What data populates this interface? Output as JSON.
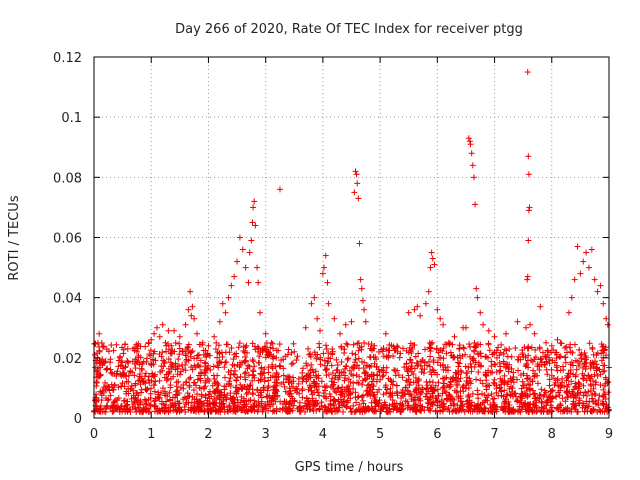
{
  "chart_data": {
    "type": "scatter",
    "title": "Day 266 of 2020, Rate Of TEC Index for receiver ptgg",
    "xlabel": "GPS time / hours",
    "ylabel": "ROTI / TECUs",
    "xlim": [
      0,
      9
    ],
    "ylim": [
      0,
      0.12
    ],
    "x_ticks": [
      "0",
      "1",
      "2",
      "3",
      "4",
      "5",
      "6",
      "7",
      "8",
      "9"
    ],
    "y_ticks": [
      "0",
      "0.02",
      "0.04",
      "0.06",
      "0.08",
      "0.1",
      "0.12"
    ],
    "grid": true,
    "legend": "none",
    "marker": "plus",
    "color": "#ee0000",
    "baseline_range": [
      0.002,
      0.025
    ],
    "series": [
      {
        "points": [
          [
            0.02,
            0.006
          ],
          [
            0.04,
            0.012
          ],
          [
            0.05,
            0.019
          ],
          [
            0.07,
            0.025
          ],
          [
            0.09,
            0.028
          ],
          [
            0.1,
            0.022
          ],
          [
            0.12,
            0.004
          ],
          [
            0.15,
            0.009
          ],
          [
            0.3,
            0.015
          ],
          [
            0.45,
            0.02
          ],
          [
            0.6,
            0.012
          ],
          [
            0.75,
            0.022
          ],
          [
            0.85,
            0.018
          ],
          [
            0.95,
            0.025
          ],
          [
            1.0,
            0.026
          ],
          [
            1.05,
            0.028
          ],
          [
            1.1,
            0.03
          ],
          [
            1.15,
            0.027
          ],
          [
            1.2,
            0.031
          ],
          [
            1.25,
            0.025
          ],
          [
            1.3,
            0.029
          ],
          [
            1.35,
            0.024
          ],
          [
            1.4,
            0.029
          ],
          [
            1.5,
            0.027
          ],
          [
            1.55,
            0.022
          ],
          [
            1.6,
            0.031
          ],
          [
            1.65,
            0.036
          ],
          [
            1.68,
            0.042
          ],
          [
            1.7,
            0.034
          ],
          [
            1.72,
            0.037
          ],
          [
            1.75,
            0.033
          ],
          [
            1.8,
            0.028
          ],
          [
            1.9,
            0.025
          ],
          [
            2.0,
            0.024
          ],
          [
            2.1,
            0.027
          ],
          [
            2.2,
            0.032
          ],
          [
            2.25,
            0.038
          ],
          [
            2.3,
            0.035
          ],
          [
            2.35,
            0.04
          ],
          [
            2.4,
            0.044
          ],
          [
            2.45,
            0.047
          ],
          [
            2.5,
            0.052
          ],
          [
            2.55,
            0.06
          ],
          [
            2.6,
            0.056
          ],
          [
            2.65,
            0.05
          ],
          [
            2.7,
            0.045
          ],
          [
            2.72,
            0.055
          ],
          [
            2.75,
            0.059
          ],
          [
            2.77,
            0.065
          ],
          [
            2.78,
            0.07
          ],
          [
            2.8,
            0.072
          ],
          [
            2.82,
            0.064
          ],
          [
            2.85,
            0.05
          ],
          [
            2.87,
            0.045
          ],
          [
            2.9,
            0.035
          ],
          [
            3.0,
            0.028
          ],
          [
            3.1,
            0.025
          ],
          [
            3.25,
            0.076
          ],
          [
            3.5,
            0.022
          ],
          [
            3.7,
            0.03
          ],
          [
            3.8,
            0.038
          ],
          [
            3.85,
            0.04
          ],
          [
            3.9,
            0.033
          ],
          [
            3.95,
            0.029
          ],
          [
            4.0,
            0.048
          ],
          [
            4.02,
            0.05
          ],
          [
            4.05,
            0.054
          ],
          [
            4.08,
            0.045
          ],
          [
            4.1,
            0.038
          ],
          [
            4.2,
            0.033
          ],
          [
            4.3,
            0.028
          ],
          [
            4.4,
            0.031
          ],
          [
            4.5,
            0.032
          ],
          [
            4.55,
            0.075
          ],
          [
            4.57,
            0.082
          ],
          [
            4.59,
            0.081
          ],
          [
            4.6,
            0.078
          ],
          [
            4.62,
            0.073
          ],
          [
            4.64,
            0.058
          ],
          [
            4.66,
            0.046
          ],
          [
            4.68,
            0.043
          ],
          [
            4.7,
            0.039
          ],
          [
            4.72,
            0.036
          ],
          [
            4.75,
            0.032
          ],
          [
            4.9,
            0.024
          ],
          [
            5.1,
            0.028
          ],
          [
            5.3,
            0.022
          ],
          [
            5.5,
            0.035
          ],
          [
            5.6,
            0.036
          ],
          [
            5.65,
            0.037
          ],
          [
            5.7,
            0.034
          ],
          [
            5.8,
            0.038
          ],
          [
            5.85,
            0.042
          ],
          [
            5.88,
            0.05
          ],
          [
            5.9,
            0.055
          ],
          [
            5.92,
            0.053
          ],
          [
            5.95,
            0.051
          ],
          [
            6.0,
            0.036
          ],
          [
            6.05,
            0.033
          ],
          [
            6.1,
            0.031
          ],
          [
            6.2,
            0.025
          ],
          [
            6.3,
            0.027
          ],
          [
            6.45,
            0.03
          ],
          [
            6.5,
            0.03
          ],
          [
            6.55,
            0.093
          ],
          [
            6.57,
            0.092
          ],
          [
            6.58,
            0.091
          ],
          [
            6.6,
            0.088
          ],
          [
            6.62,
            0.084
          ],
          [
            6.64,
            0.08
          ],
          [
            6.66,
            0.071
          ],
          [
            6.68,
            0.043
          ],
          [
            6.7,
            0.04
          ],
          [
            6.75,
            0.035
          ],
          [
            6.8,
            0.031
          ],
          [
            6.9,
            0.029
          ],
          [
            7.0,
            0.027
          ],
          [
            7.2,
            0.028
          ],
          [
            7.4,
            0.032
          ],
          [
            7.55,
            0.03
          ],
          [
            7.58,
            0.115
          ],
          [
            7.59,
            0.087
          ],
          [
            7.6,
            0.081
          ],
          [
            7.61,
            0.07
          ],
          [
            7.6,
            0.069
          ],
          [
            7.59,
            0.059
          ],
          [
            7.58,
            0.047
          ],
          [
            7.57,
            0.046
          ],
          [
            7.62,
            0.031
          ],
          [
            7.7,
            0.028
          ],
          [
            7.8,
            0.037
          ],
          [
            7.9,
            0.025
          ],
          [
            8.0,
            0.024
          ],
          [
            8.1,
            0.026
          ],
          [
            8.3,
            0.035
          ],
          [
            8.35,
            0.04
          ],
          [
            8.4,
            0.046
          ],
          [
            8.45,
            0.057
          ],
          [
            8.5,
            0.048
          ],
          [
            8.55,
            0.052
          ],
          [
            8.6,
            0.055
          ],
          [
            8.65,
            0.05
          ],
          [
            8.7,
            0.056
          ],
          [
            8.75,
            0.046
          ],
          [
            8.8,
            0.042
          ],
          [
            8.85,
            0.044
          ],
          [
            8.9,
            0.038
          ],
          [
            8.95,
            0.033
          ],
          [
            8.98,
            0.031
          ]
        ]
      }
    ]
  }
}
